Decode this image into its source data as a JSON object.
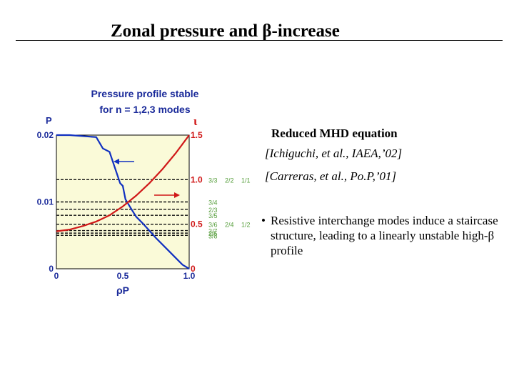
{
  "slide": {
    "title": "Zonal pressure and β-increase",
    "heading": "Reduced MHD equation",
    "ref1": "[Ichiguchi, et al., IAEA,’02]",
    "ref2": "[Carreras, et al., Po.P,’01]",
    "bullet_symbol": "•",
    "bullet_text": "Resistive interchange modes induce a staircase structure, leading to a linearly unstable high-β profile"
  },
  "colors": {
    "pressure": "#1030c0",
    "iota": "#d01818",
    "panel": "#fafad8",
    "label_green": "#5aa040",
    "label_blue": "#1a2a9a"
  },
  "chart_data": {
    "type": "line",
    "caption_line1": "Pressure profile stable",
    "caption_line2": "for n = 1,2,3 modes",
    "xlabel": "ρP",
    "y_left_label": "P",
    "y_right_label": "ι",
    "xlim": [
      0,
      1
    ],
    "ylim_left": [
      0,
      0.02
    ],
    "ylim_right": [
      0,
      1.5
    ],
    "x_ticks": [
      "0",
      "0.5",
      "1.0"
    ],
    "y_left_ticks": [
      "0",
      "0.01",
      "0.02"
    ],
    "y_right_ticks": [
      "0",
      "0.5",
      "1.0",
      "1.5"
    ],
    "series": [
      {
        "name": "pressure P (left axis)",
        "x": [
          0,
          0.1,
          0.3,
          0.35,
          0.4,
          0.48,
          0.5,
          0.52,
          0.55,
          0.6,
          0.65,
          0.75,
          0.85,
          0.9,
          0.95,
          1.0
        ],
        "y": [
          0.02,
          0.02,
          0.0197,
          0.018,
          0.0175,
          0.0128,
          0.0124,
          0.0104,
          0.0094,
          0.0078,
          0.0068,
          0.0046,
          0.0026,
          0.0016,
          0.0006,
          0
        ]
      },
      {
        "name": "rotational transform ι (right axis)",
        "x": [
          0,
          0.1,
          0.2,
          0.3,
          0.4,
          0.5,
          0.6,
          0.7,
          0.8,
          0.9,
          1.0
        ],
        "y": [
          0.42,
          0.44,
          0.48,
          0.53,
          0.6,
          0.7,
          0.82,
          0.96,
          1.12,
          1.3,
          1.5
        ]
      }
    ],
    "resonances": [
      {
        "label": "3/3",
        "iota": 1.0
      },
      {
        "label": "2/2",
        "iota": 1.0
      },
      {
        "label": "1/1",
        "iota": 1.0
      },
      {
        "label": "3/4",
        "iota": 0.75
      },
      {
        "label": "2/3",
        "iota": 0.667
      },
      {
        "label": "3/5",
        "iota": 0.6
      },
      {
        "label": "3/6",
        "iota": 0.5
      },
      {
        "label": "2/4",
        "iota": 0.5
      },
      {
        "label": "1/2",
        "iota": 0.5
      },
      {
        "label": "3/7",
        "iota": 0.4286
      },
      {
        "label": "2/5",
        "iota": 0.4
      },
      {
        "label": "3/8",
        "iota": 0.375
      }
    ]
  }
}
